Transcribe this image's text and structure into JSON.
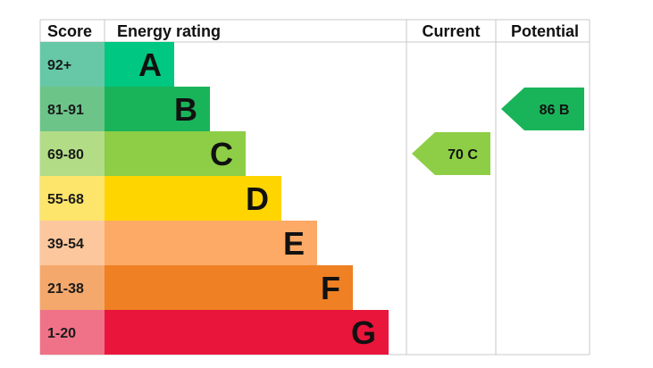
{
  "chart_data": {
    "type": "bar",
    "headers": {
      "score": "Score",
      "rating": "Energy rating",
      "current": "Current",
      "potential": "Potential"
    },
    "bands": [
      {
        "letter": "A",
        "range": "92+",
        "color": "#00c781",
        "score_bg": "#66c8a6"
      },
      {
        "letter": "B",
        "range": "81-91",
        "color": "#19b459",
        "score_bg": "#6cc489"
      },
      {
        "letter": "C",
        "range": "69-80",
        "color": "#8dce46",
        "score_bg": "#b2dd86"
      },
      {
        "letter": "D",
        "range": "55-68",
        "color": "#ffd500",
        "score_bg": "#fde46a"
      },
      {
        "letter": "E",
        "range": "39-54",
        "color": "#fcaa65",
        "score_bg": "#fcc79d"
      },
      {
        "letter": "F",
        "range": "21-38",
        "color": "#ef8023",
        "score_bg": "#f4a86c"
      },
      {
        "letter": "G",
        "range": "1-20",
        "color": "#e9153b",
        "score_bg": "#f07288"
      }
    ],
    "current": {
      "value": 70,
      "letter": "C",
      "color": "#8dce46"
    },
    "potential": {
      "value": 86,
      "letter": "B",
      "color": "#19b459"
    }
  }
}
